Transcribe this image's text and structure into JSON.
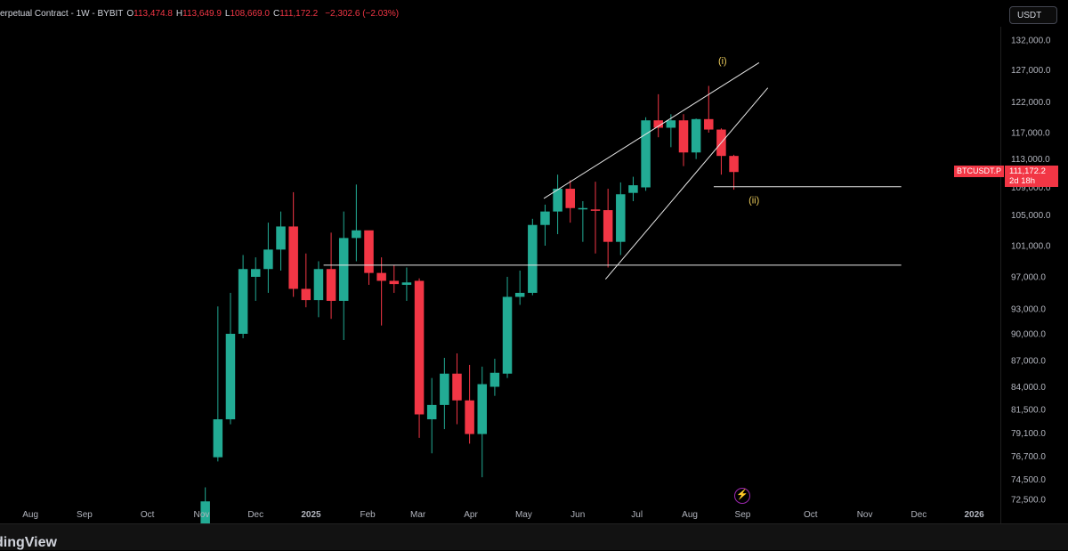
{
  "header": {
    "symbol": "erpetual Contract - 1W - BYBIT",
    "open_label": "O",
    "open": "113,474.8",
    "high_label": "H",
    "high": "113,649.9",
    "low_label": "L",
    "low": "108,669.0",
    "close_label": "C",
    "close": "111,172.2",
    "change": "−2,302.6 (−2.03%)"
  },
  "currency_button": "USDT",
  "price_tag": {
    "symbol": "BTCUSDT.P",
    "price": "111,172.2",
    "countdown": "2d 18h"
  },
  "brand": "dingView",
  "icons": {
    "lightning": "lightning-icon"
  },
  "colors": {
    "up": "#22ab94",
    "down": "#f23645",
    "label": "#e8c85a",
    "line": "#e6e6e6"
  },
  "chart_data": {
    "type": "candlestick",
    "timeframe": "1W",
    "price_axis_ticks": [
      {
        "price": 132000,
        "label": "132,000.0"
      },
      {
        "price": 127000,
        "label": "127,000.0"
      },
      {
        "price": 122000,
        "label": "122,000.0"
      },
      {
        "price": 117000,
        "label": "117,000.0"
      },
      {
        "price": 113000,
        "label": "113,000.0"
      },
      {
        "price": 109000,
        "label": "109,000.0"
      },
      {
        "price": 105000,
        "label": "105,000.0"
      },
      {
        "price": 101000,
        "label": "101,000.0"
      },
      {
        "price": 97000,
        "label": "97,000.0"
      },
      {
        "price": 93000,
        "label": "93,000.0"
      },
      {
        "price": 90000,
        "label": "90,000.0"
      },
      {
        "price": 87000,
        "label": "87,000.0"
      },
      {
        "price": 84000,
        "label": "84,000.0"
      },
      {
        "price": 81500,
        "label": "81,500.0"
      },
      {
        "price": 79100,
        "label": "79,100.0"
      },
      {
        "price": 76700,
        "label": "76,700.0"
      },
      {
        "price": 74500,
        "label": "74,500.0"
      },
      {
        "price": 72500,
        "label": "72,500.0"
      }
    ],
    "time_axis_ticks": [
      {
        "index": -26.9,
        "label": "Aug",
        "bold": false
      },
      {
        "index": -22.6,
        "label": "Sep",
        "bold": false
      },
      {
        "index": -17.6,
        "label": "Oct",
        "bold": false
      },
      {
        "index": -13.3,
        "label": "Nov",
        "bold": false
      },
      {
        "index": -9.0,
        "label": "Dec",
        "bold": false
      },
      {
        "index": -4.6,
        "label": "2025",
        "bold": true
      },
      {
        "index": -0.1,
        "label": "Feb",
        "bold": false
      },
      {
        "index": 3.9,
        "label": "Mar",
        "bold": false
      },
      {
        "index": 8.1,
        "label": "Apr",
        "bold": false
      },
      {
        "index": 12.3,
        "label": "May",
        "bold": false
      },
      {
        "index": 16.6,
        "label": "Jun",
        "bold": false
      },
      {
        "index": 21.3,
        "label": "Jul",
        "bold": false
      },
      {
        "index": 25.5,
        "label": "Aug",
        "bold": false
      },
      {
        "index": 29.7,
        "label": "Sep",
        "bold": false
      },
      {
        "index": 35.1,
        "label": "Oct",
        "bold": false
      },
      {
        "index": 39.4,
        "label": "Nov",
        "bold": false
      },
      {
        "index": 43.7,
        "label": "Dec",
        "bold": false
      },
      {
        "index": 48.1,
        "label": "2026",
        "bold": true
      }
    ],
    "candles": [
      {
        "i": -13,
        "o": 68500,
        "h": 73700,
        "l": 68000,
        "c": 72300
      },
      {
        "i": -12,
        "o": 76600,
        "h": 93300,
        "l": 76200,
        "c": 80500
      },
      {
        "i": -11,
        "o": 80500,
        "h": 95000,
        "l": 80000,
        "c": 90000
      },
      {
        "i": -10,
        "o": 90000,
        "h": 99800,
        "l": 89500,
        "c": 98000
      },
      {
        "i": -9,
        "o": 97000,
        "h": 99500,
        "l": 94000,
        "c": 98000
      },
      {
        "i": -8,
        "o": 98000,
        "h": 104000,
        "l": 95000,
        "c": 100500
      },
      {
        "i": -7,
        "o": 100500,
        "h": 105500,
        "l": 97800,
        "c": 103500
      },
      {
        "i": -6,
        "o": 103500,
        "h": 108300,
        "l": 94500,
        "c": 95500
      },
      {
        "i": -5,
        "o": 95500,
        "h": 100000,
        "l": 93200,
        "c": 94100
      },
      {
        "i": -4,
        "o": 94100,
        "h": 99000,
        "l": 92000,
        "c": 98000
      },
      {
        "i": -3,
        "o": 98000,
        "h": 102700,
        "l": 91800,
        "c": 94000
      },
      {
        "i": -2,
        "o": 94000,
        "h": 105500,
        "l": 89300,
        "c": 102000
      },
      {
        "i": -1,
        "o": 102000,
        "h": 109400,
        "l": 99000,
        "c": 103000
      },
      {
        "i": 0,
        "o": 103000,
        "h": 102500,
        "l": 96000,
        "c": 97500
      },
      {
        "i": 1,
        "o": 97500,
        "h": 99500,
        "l": 91000,
        "c": 96500
      },
      {
        "i": 2,
        "o": 96500,
        "h": 98500,
        "l": 95000,
        "c": 96100
      },
      {
        "i": 3,
        "o": 96000,
        "h": 98200,
        "l": 94000,
        "c": 96300
      },
      {
        "i": 4,
        "o": 96500,
        "h": 96800,
        "l": 78600,
        "c": 81000
      },
      {
        "i": 5,
        "o": 80500,
        "h": 85000,
        "l": 77000,
        "c": 82000
      },
      {
        "i": 6,
        "o": 82000,
        "h": 87300,
        "l": 79500,
        "c": 85500
      },
      {
        "i": 7,
        "o": 85500,
        "h": 87800,
        "l": 80000,
        "c": 82500
      },
      {
        "i": 8,
        "o": 82500,
        "h": 86500,
        "l": 78000,
        "c": 79000
      },
      {
        "i": 9,
        "o": 79000,
        "h": 86300,
        "l": 74700,
        "c": 84300
      },
      {
        "i": 10,
        "o": 84000,
        "h": 87200,
        "l": 83000,
        "c": 85600
      },
      {
        "i": 11,
        "o": 85500,
        "h": 97000,
        "l": 85000,
        "c": 94500
      },
      {
        "i": 12,
        "o": 94500,
        "h": 97800,
        "l": 93500,
        "c": 95000
      },
      {
        "i": 13,
        "o": 95000,
        "h": 104500,
        "l": 94700,
        "c": 103700
      },
      {
        "i": 14,
        "o": 103700,
        "h": 106500,
        "l": 101000,
        "c": 105500
      },
      {
        "i": 15,
        "o": 105500,
        "h": 110800,
        "l": 102500,
        "c": 108800
      },
      {
        "i": 16,
        "o": 108800,
        "h": 110000,
        "l": 104000,
        "c": 106000
      },
      {
        "i": 17,
        "o": 106000,
        "h": 107000,
        "l": 101500,
        "c": 106000
      },
      {
        "i": 18,
        "o": 105800,
        "h": 109800,
        "l": 100000,
        "c": 105600
      },
      {
        "i": 19,
        "o": 105700,
        "h": 108800,
        "l": 98200,
        "c": 101500
      },
      {
        "i": 20,
        "o": 101500,
        "h": 109700,
        "l": 99800,
        "c": 108000
      },
      {
        "i": 21,
        "o": 108200,
        "h": 110500,
        "l": 107000,
        "c": 109300
      },
      {
        "i": 22,
        "o": 109000,
        "h": 119500,
        "l": 108500,
        "c": 119000
      },
      {
        "i": 23,
        "o": 119000,
        "h": 123200,
        "l": 116300,
        "c": 117800
      },
      {
        "i": 24,
        "o": 117800,
        "h": 120000,
        "l": 114800,
        "c": 119000
      },
      {
        "i": 25,
        "o": 119000,
        "h": 120000,
        "l": 112000,
        "c": 114000
      },
      {
        "i": 26,
        "o": 114000,
        "h": 119300,
        "l": 113000,
        "c": 119200
      },
      {
        "i": 27,
        "o": 119200,
        "h": 124500,
        "l": 117000,
        "c": 117500
      },
      {
        "i": 28,
        "o": 117500,
        "h": 117700,
        "l": 110800,
        "c": 113474.8
      },
      {
        "i": 29,
        "o": 113474.8,
        "h": 113649.9,
        "l": 108669.0,
        "c": 111172.2
      }
    ],
    "trendlines": [
      {
        "from": {
          "i": 13.9,
          "p": 107400
        },
        "to": {
          "i": 31.0,
          "p": 128200
        }
      },
      {
        "from": {
          "i": 18.8,
          "p": 96700
        },
        "to": {
          "i": 31.7,
          "p": 124200
        }
      }
    ],
    "horizontal_lines": [
      {
        "from_i": -3.6,
        "to_i": 42.3,
        "p": 98500
      },
      {
        "from_i": 27.4,
        "to_i": 42.3,
        "p": 109100
      }
    ],
    "wave_labels": [
      {
        "text": "(i)",
        "i": 28.1,
        "p": 128000
      },
      {
        "text": "(ii)",
        "i": 30.6,
        "p": 106700
      }
    ],
    "last_price": 111172.2
  }
}
